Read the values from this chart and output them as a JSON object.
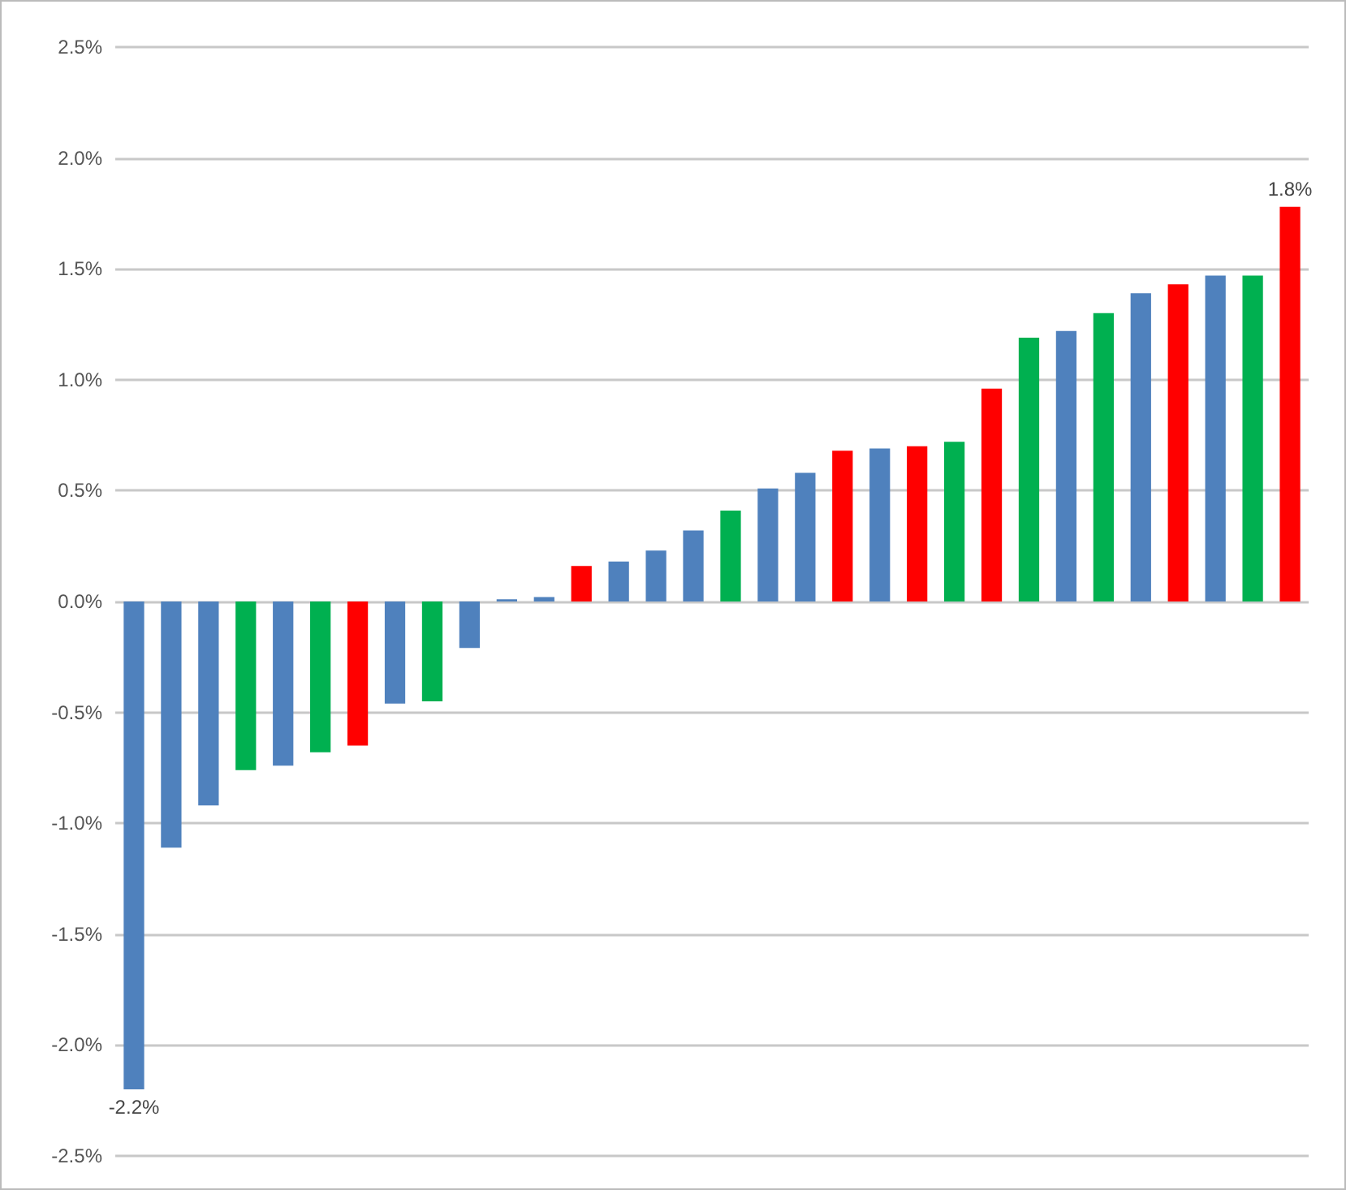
{
  "chart_data": {
    "type": "bar",
    "categories": [
      null,
      null,
      null,
      null,
      null,
      null,
      null,
      null,
      null,
      null,
      null,
      null,
      null,
      null,
      null,
      null,
      null,
      null,
      null,
      null,
      null,
      null,
      null,
      null,
      null,
      null,
      null,
      null,
      null,
      null,
      null,
      null
    ],
    "values": [
      -2.2,
      -1.11,
      -0.92,
      -0.76,
      -0.74,
      -0.68,
      -0.65,
      -0.46,
      -0.45,
      -0.21,
      0.01,
      0.02,
      0.16,
      0.18,
      0.23,
      0.32,
      0.41,
      0.51,
      0.58,
      0.68,
      0.69,
      0.7,
      0.72,
      0.96,
      1.19,
      1.22,
      1.3,
      1.39,
      1.43,
      1.47,
      1.47,
      1.78
    ],
    "colors": [
      "#4f81bd",
      "#4f81bd",
      "#4f81bd",
      "#00b050",
      "#4f81bd",
      "#00b050",
      "#ff0000",
      "#4f81bd",
      "#00b050",
      "#4f81bd",
      "#4f81bd",
      "#4f81bd",
      "#ff0000",
      "#4f81bd",
      "#4f81bd",
      "#4f81bd",
      "#00b050",
      "#4f81bd",
      "#4f81bd",
      "#ff0000",
      "#4f81bd",
      "#ff0000",
      "#00b050",
      "#ff0000",
      "#00b050",
      "#4f81bd",
      "#00b050",
      "#4f81bd",
      "#ff0000",
      "#4f81bd",
      "#00b050",
      "#ff0000"
    ],
    "value_labels": [
      "-2.2%",
      null,
      null,
      null,
      null,
      null,
      null,
      null,
      null,
      null,
      null,
      null,
      null,
      null,
      null,
      null,
      null,
      null,
      null,
      null,
      null,
      null,
      null,
      null,
      null,
      null,
      null,
      null,
      null,
      null,
      null,
      "1.8%"
    ],
    "ylim": [
      -2.5,
      2.5
    ],
    "yticks": [
      {
        "value": -2.5,
        "label": "-2.5%"
      },
      {
        "value": -2,
        "label": "-2.0%"
      },
      {
        "value": -1.5,
        "label": "-1.5%"
      },
      {
        "value": -1,
        "label": "-1.0%"
      },
      {
        "value": -0.5,
        "label": "-0.5%"
      },
      {
        "value": 0,
        "label": "0.0%"
      },
      {
        "value": 0.5,
        "label": "0.5%"
      },
      {
        "value": 1,
        "label": "1.0%"
      },
      {
        "value": 1.5,
        "label": "1.5%"
      },
      {
        "value": 2,
        "label": "2.0%"
      },
      {
        "value": 2.5,
        "label": "2.5%"
      }
    ],
    "grid": "y"
  }
}
